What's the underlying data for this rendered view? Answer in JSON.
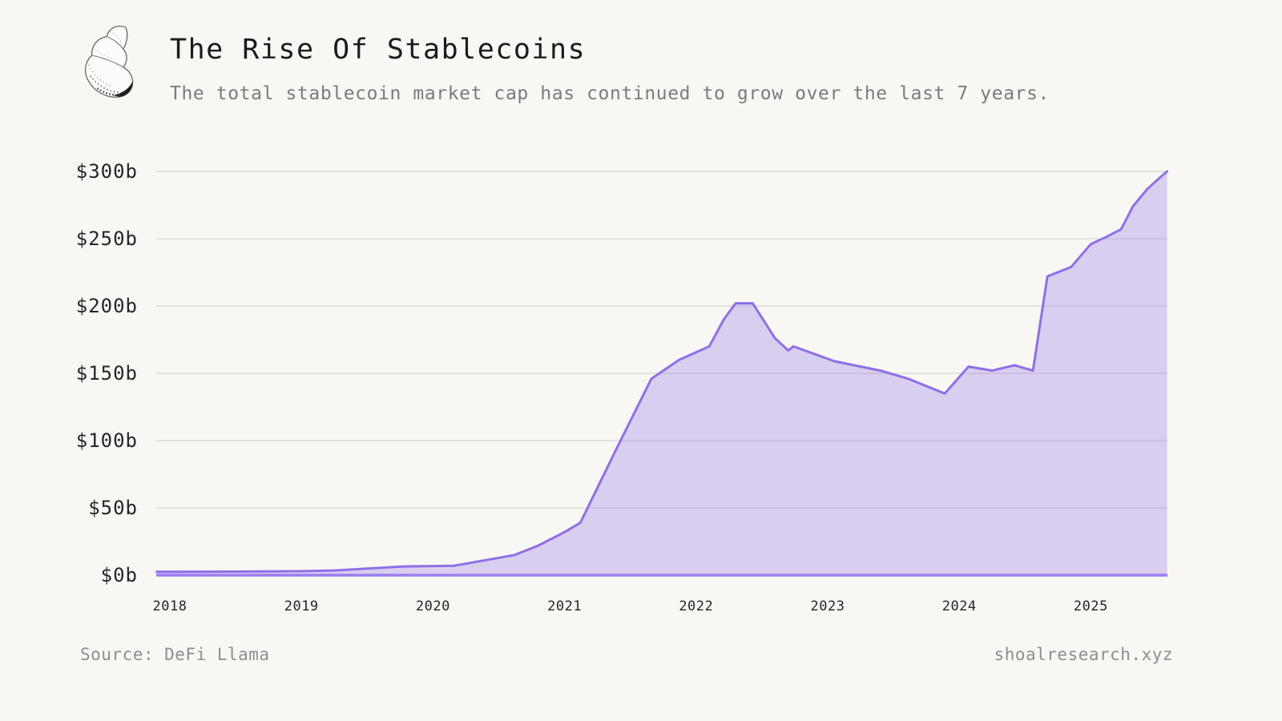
{
  "page": {
    "background_color": "#f8f7f3"
  },
  "header": {
    "logo_icon": "seashell-icon",
    "title": "The Rise Of Stablecoins",
    "subtitle": "The total stablecoin market cap has continued to grow over the last 7 years."
  },
  "footer": {
    "source": "Source: DeFi Llama",
    "site": "shoalresearch.xyz"
  },
  "chart_data": {
    "type": "area",
    "title": "The Rise Of Stablecoins",
    "subtitle": "The total stablecoin market cap has continued to grow over the last 7 years.",
    "x_unit": "year",
    "y_unit": "USD billions",
    "xlim": [
      2017.9,
      2025.62
    ],
    "ylim": [
      0,
      300
    ],
    "grid": "horizontal",
    "legend": "none",
    "colors": {
      "background": "#f8f7f3",
      "grid": "#dcdcda",
      "baseline": "#9b7df0",
      "line": "#8f6fe9",
      "area_fill": "rgba(143,111,233,0.30)",
      "tick_text": "#262626",
      "footer_text": "#8e8e8e"
    },
    "yticks": [
      {
        "v": 0,
        "label": "$0b"
      },
      {
        "v": 50,
        "label": "$50b"
      },
      {
        "v": 100,
        "label": "$100b"
      },
      {
        "v": 150,
        "label": "$150b"
      },
      {
        "v": 200,
        "label": "$200b"
      },
      {
        "v": 250,
        "label": "$250b"
      },
      {
        "v": 300,
        "label": "$300b"
      }
    ],
    "xticks": [
      {
        "t": 2018,
        "label": "2018"
      },
      {
        "t": 2019,
        "label": "2019"
      },
      {
        "t": 2020,
        "label": "2020"
      },
      {
        "t": 2021,
        "label": "2021"
      },
      {
        "t": 2022,
        "label": "2022"
      },
      {
        "t": 2023,
        "label": "2023"
      },
      {
        "t": 2024,
        "label": "2024"
      },
      {
        "t": 2025,
        "label": "2025"
      }
    ],
    "series_name": "Total stablecoin market cap ($b)",
    "points": [
      [
        2017.9,
        2.5
      ],
      [
        2018.0,
        2.5
      ],
      [
        2018.5,
        2.7
      ],
      [
        2019.0,
        3.0
      ],
      [
        2019.25,
        3.5
      ],
      [
        2019.77,
        6.5
      ],
      [
        2020.16,
        7.0
      ],
      [
        2020.62,
        15.0
      ],
      [
        2020.8,
        22.0
      ],
      [
        2021.0,
        32.0
      ],
      [
        2021.12,
        39.0
      ],
      [
        2021.4,
        95.0
      ],
      [
        2021.66,
        146.0
      ],
      [
        2021.87,
        160.0
      ],
      [
        2022.1,
        170.0
      ],
      [
        2022.21,
        190.0
      ],
      [
        2022.3,
        202.0
      ],
      [
        2022.43,
        202.0
      ],
      [
        2022.6,
        176.0
      ],
      [
        2022.7,
        167.0
      ],
      [
        2022.74,
        170.0
      ],
      [
        2023.05,
        159.0
      ],
      [
        2023.4,
        152.0
      ],
      [
        2023.61,
        146.0
      ],
      [
        2023.89,
        135.0
      ],
      [
        2024.07,
        155.0
      ],
      [
        2024.25,
        152.0
      ],
      [
        2024.42,
        156.0
      ],
      [
        2024.56,
        152.0
      ],
      [
        2024.67,
        222.0
      ],
      [
        2024.85,
        229.0
      ],
      [
        2025.0,
        246.0
      ],
      [
        2025.11,
        251.0
      ],
      [
        2025.23,
        257.0
      ],
      [
        2025.32,
        274.0
      ],
      [
        2025.43,
        287.0
      ],
      [
        2025.52,
        295.0
      ],
      [
        2025.58,
        300.0
      ]
    ]
  }
}
